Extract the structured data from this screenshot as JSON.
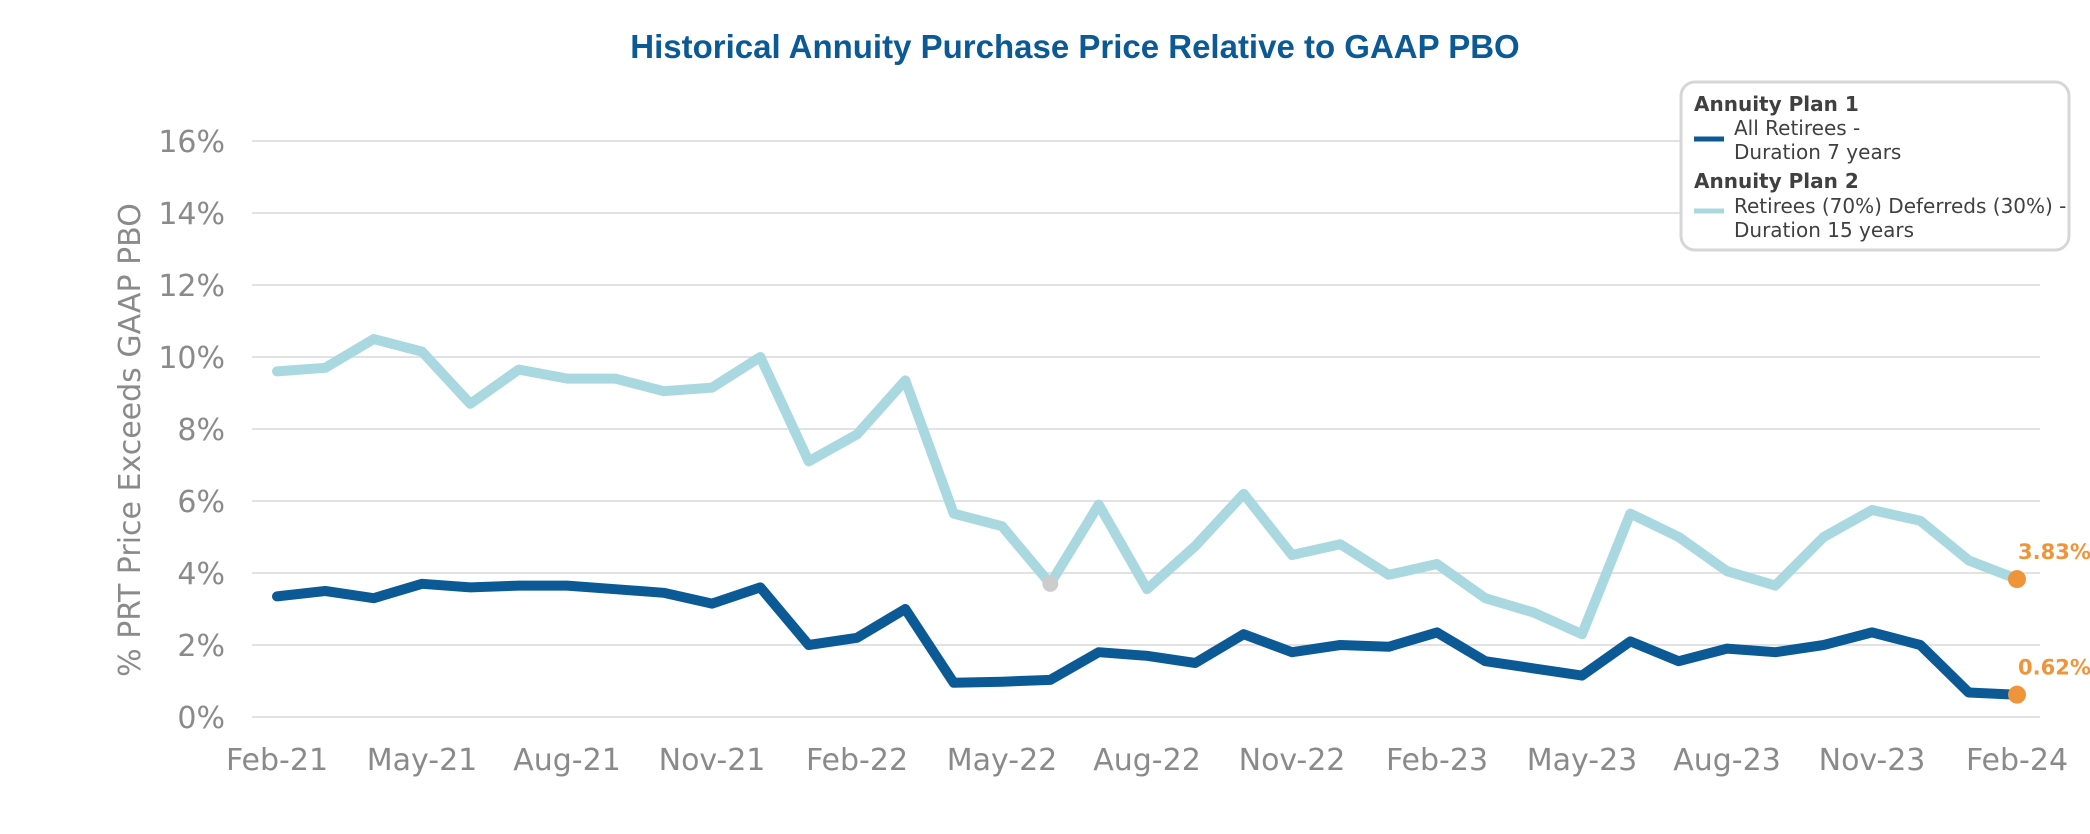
{
  "chart_data": {
    "type": "line",
    "title": "Historical Annuity Purchase Price Relative to GAAP PBO",
    "ylabel": "% PRT Price Exceeds GAAP PBO",
    "xlabel": "",
    "ylim": [
      0,
      16
    ],
    "yticks": [
      "0%",
      "2%",
      "4%",
      "6%",
      "8%",
      "10%",
      "12%",
      "14%",
      "16%"
    ],
    "ytick_values": [
      0,
      2,
      4,
      6,
      8,
      10,
      12,
      14,
      16
    ],
    "xtick_labels": [
      "Feb-21",
      "May-21",
      "Aug-21",
      "Nov-21",
      "Feb-22",
      "May-22",
      "Aug-22",
      "Nov-22",
      "Feb-23",
      "May-23",
      "Aug-23",
      "Nov-23",
      "Feb-24"
    ],
    "x_months": [
      "Feb-21",
      "Mar-21",
      "Apr-21",
      "May-21",
      "Jun-21",
      "Jul-21",
      "Aug-21",
      "Sep-21",
      "Oct-21",
      "Nov-21",
      "Dec-21",
      "Jan-22",
      "Feb-22",
      "Mar-22",
      "Apr-22",
      "May-22",
      "Jun-22",
      "Jul-22",
      "Aug-22",
      "Sep-22",
      "Oct-22",
      "Nov-22",
      "Dec-22",
      "Jan-23",
      "Feb-23",
      "Mar-23",
      "Apr-23",
      "May-23",
      "Jun-23",
      "Jul-23",
      "Aug-23",
      "Sep-23",
      "Oct-23",
      "Nov-23",
      "Dec-23",
      "Jan-24",
      "Feb-24"
    ],
    "grid": true,
    "legend_position": "top-right",
    "series": [
      {
        "name": "Annuity Plan 2",
        "legend_head": "Annuity Plan 2",
        "legend_lines": [
          "Retirees (70%) Deferreds (30%) -",
          "Duration 15 years"
        ],
        "color": "#aad8e0",
        "values": [
          9.6,
          9.7,
          10.5,
          10.15,
          8.7,
          9.65,
          9.4,
          9.4,
          9.05,
          9.15,
          10.0,
          7.1,
          7.85,
          9.35,
          5.65,
          5.3,
          3.7,
          5.9,
          3.55,
          4.75,
          6.2,
          4.5,
          4.8,
          3.95,
          4.25,
          3.3,
          2.9,
          2.3,
          5.65,
          5.0,
          4.05,
          3.65,
          5.0,
          5.75,
          5.45,
          4.35,
          3.83
        ],
        "highlight_index": 16,
        "highlight_color": "#cccccc",
        "end_label": "3.83%"
      },
      {
        "name": "Annuity Plan 1",
        "legend_head": "Annuity Plan 1",
        "legend_lines": [
          "All Retirees -",
          "Duration 7 years"
        ],
        "color": "#0b5a96",
        "values": [
          3.35,
          3.5,
          3.3,
          3.7,
          3.6,
          3.65,
          3.65,
          3.55,
          3.45,
          3.15,
          3.6,
          2.0,
          2.2,
          3.0,
          0.95,
          0.98,
          1.03,
          1.8,
          1.7,
          1.5,
          2.3,
          1.8,
          2.0,
          1.95,
          2.35,
          1.55,
          1.35,
          1.15,
          2.1,
          1.55,
          1.9,
          1.8,
          2.0,
          2.35,
          2.0,
          0.68,
          0.62
        ],
        "end_label": "0.62%"
      }
    ],
    "end_marker_color": "#f0943a"
  }
}
